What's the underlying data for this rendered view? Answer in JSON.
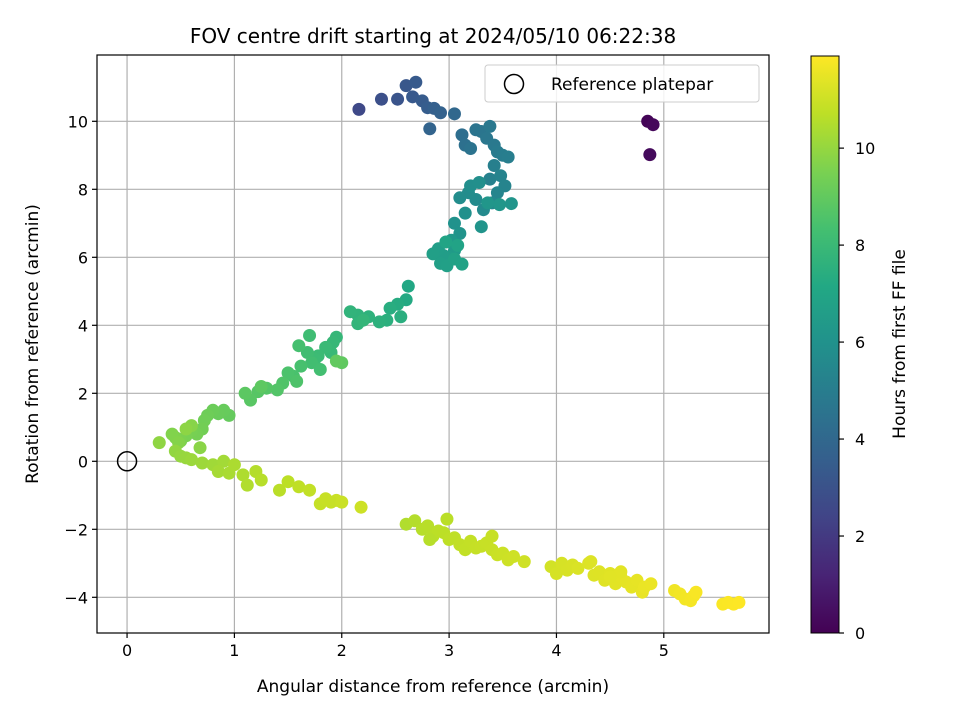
{
  "chart_data": {
    "type": "scatter",
    "title": "FOV centre drift starting at 2024/05/10 06:22:38",
    "xlabel": "Angular distance from reference (arcmin)",
    "ylabel": "Rotation from reference (arcmin)",
    "xlim": [
      -0.28,
      5.98
    ],
    "ylim": [
      -5.05,
      11.95
    ],
    "xticks": [
      "0",
      "1",
      "2",
      "3",
      "4",
      "5"
    ],
    "yticks": [
      "−4",
      "−2",
      "0",
      "2",
      "4",
      "6",
      "8",
      "10"
    ],
    "grid": true,
    "legend": {
      "position": "top-right",
      "entries": [
        "Reference platepar"
      ]
    },
    "reference_point": {
      "x": 0,
      "y": 0
    },
    "colorbar": {
      "label": "Hours from first FF file",
      "range": [
        0,
        11.9
      ],
      "ticks": [
        "0",
        "2",
        "4",
        "6",
        "8",
        "10"
      ],
      "colormap": "viridis"
    },
    "points": [
      [
        4.85,
        10.0,
        0.1
      ],
      [
        4.9,
        9.9,
        0.2
      ],
      [
        4.87,
        9.02,
        0.3
      ],
      [
        2.16,
        10.35,
        2.6
      ],
      [
        2.37,
        10.65,
        2.9
      ],
      [
        2.52,
        10.65,
        3.1
      ],
      [
        2.6,
        11.05,
        3.2
      ],
      [
        2.66,
        10.72,
        3.3
      ],
      [
        2.69,
        11.15,
        3.35
      ],
      [
        2.75,
        10.6,
        3.4
      ],
      [
        2.8,
        10.4,
        3.5
      ],
      [
        2.86,
        10.38,
        3.6
      ],
      [
        2.92,
        10.25,
        3.7
      ],
      [
        2.82,
        9.78,
        3.8
      ],
      [
        3.05,
        10.22,
        4.0
      ],
      [
        3.12,
        9.6,
        4.3
      ],
      [
        3.15,
        9.3,
        4.4
      ],
      [
        3.2,
        9.2,
        4.5
      ],
      [
        3.25,
        9.75,
        4.55
      ],
      [
        3.3,
        9.7,
        4.6
      ],
      [
        3.35,
        9.5,
        4.7
      ],
      [
        3.38,
        9.85,
        4.75
      ],
      [
        3.42,
        9.3,
        4.8
      ],
      [
        3.45,
        9.1,
        4.9
      ],
      [
        3.5,
        9.0,
        5.0
      ],
      [
        3.55,
        8.95,
        5.05
      ],
      [
        3.42,
        8.7,
        5.1
      ],
      [
        3.38,
        8.3,
        5.2
      ],
      [
        3.48,
        8.4,
        5.3
      ],
      [
        3.52,
        8.1,
        5.35
      ],
      [
        3.45,
        7.9,
        5.4
      ],
      [
        3.4,
        7.6,
        5.5
      ],
      [
        3.32,
        7.4,
        5.6
      ],
      [
        3.25,
        7.7,
        5.65
      ],
      [
        3.18,
        7.9,
        5.7
      ],
      [
        3.1,
        7.75,
        5.75
      ],
      [
        3.2,
        8.1,
        5.8
      ],
      [
        3.28,
        8.2,
        5.85
      ],
      [
        3.15,
        7.3,
        5.9
      ],
      [
        3.05,
        7.0,
        6.0
      ],
      [
        3.1,
        6.7,
        6.05
      ],
      [
        3.3,
        6.9,
        6.1
      ],
      [
        3.58,
        7.58,
        6.15
      ],
      [
        3.47,
        7.55,
        6.2
      ],
      [
        3.36,
        7.6,
        6.2
      ],
      [
        3.02,
        6.5,
        6.3
      ],
      [
        3.05,
        6.2,
        6.4
      ],
      [
        3.0,
        6.0,
        6.5
      ],
      [
        2.95,
        6.05,
        6.55
      ],
      [
        2.9,
        6.25,
        6.6
      ],
      [
        2.85,
        6.1,
        6.65
      ],
      [
        2.92,
        5.82,
        6.7
      ],
      [
        2.98,
        5.75,
        6.75
      ],
      [
        3.05,
        5.95,
        6.8
      ],
      [
        3.12,
        5.8,
        6.85
      ],
      [
        3.08,
        6.35,
        6.9
      ],
      [
        2.97,
        6.45,
        6.95
      ],
      [
        2.62,
        5.15,
        7.1
      ],
      [
        2.6,
        4.75,
        7.2
      ],
      [
        2.52,
        4.62,
        7.3
      ],
      [
        2.45,
        4.5,
        7.4
      ],
      [
        2.55,
        4.25,
        7.45
      ],
      [
        2.42,
        4.15,
        7.5
      ],
      [
        2.35,
        4.1,
        7.55
      ],
      [
        2.25,
        4.25,
        7.6
      ],
      [
        2.15,
        4.3,
        7.65
      ],
      [
        2.08,
        4.4,
        7.7
      ],
      [
        2.15,
        4.05,
        7.75
      ],
      [
        2.2,
        4.15,
        7.8
      ],
      [
        1.95,
        3.65,
        7.85
      ],
      [
        1.92,
        3.5,
        7.9
      ],
      [
        1.9,
        3.2,
        7.95
      ],
      [
        1.85,
        3.35,
        8.0
      ],
      [
        1.78,
        3.1,
        8.05
      ],
      [
        1.75,
        3.0,
        8.1
      ],
      [
        1.7,
        3.7,
        8.15
      ],
      [
        1.68,
        3.2,
        8.2
      ],
      [
        1.72,
        2.9,
        8.25
      ],
      [
        1.8,
        2.7,
        8.3
      ],
      [
        1.6,
        3.4,
        8.35
      ],
      [
        1.62,
        2.8,
        8.4
      ],
      [
        1.55,
        2.5,
        8.45
      ],
      [
        1.5,
        2.6,
        8.5
      ],
      [
        1.58,
        2.35,
        8.55
      ],
      [
        1.45,
        2.3,
        8.6
      ],
      [
        1.4,
        2.1,
        8.65
      ],
      [
        1.3,
        2.15,
        8.7
      ],
      [
        1.22,
        2.05,
        8.75
      ],
      [
        1.15,
        1.8,
        8.8
      ],
      [
        1.1,
        2.0,
        8.85
      ],
      [
        1.25,
        2.2,
        8.9
      ],
      [
        2.0,
        2.9,
        8.95
      ],
      [
        1.95,
        2.95,
        9.0
      ],
      [
        0.95,
        1.35,
        9.05
      ],
      [
        0.9,
        1.5,
        9.1
      ],
      [
        0.85,
        1.4,
        9.15
      ],
      [
        0.8,
        1.5,
        9.2
      ],
      [
        0.75,
        1.35,
        9.25
      ],
      [
        0.72,
        1.2,
        9.3
      ],
      [
        0.7,
        0.95,
        9.35
      ],
      [
        0.65,
        0.8,
        9.4
      ],
      [
        0.6,
        0.9,
        9.45
      ],
      [
        0.55,
        0.75,
        9.5
      ],
      [
        0.5,
        0.6,
        9.55
      ],
      [
        0.45,
        0.7,
        9.6
      ],
      [
        0.42,
        0.8,
        9.65
      ],
      [
        0.48,
        0.55,
        9.7
      ],
      [
        0.6,
        1.05,
        9.75
      ],
      [
        0.68,
        0.4,
        9.8
      ],
      [
        0.55,
        0.95,
        9.85
      ],
      [
        0.3,
        0.55,
        9.9
      ],
      [
        0.45,
        0.3,
        9.95
      ],
      [
        0.5,
        0.15,
        10.0
      ],
      [
        0.55,
        0.1,
        10.05
      ],
      [
        0.6,
        0.05,
        10.1
      ],
      [
        0.7,
        -0.05,
        10.15
      ],
      [
        0.8,
        -0.1,
        10.2
      ],
      [
        0.9,
        0.0,
        10.25
      ],
      [
        0.85,
        -0.3,
        10.3
      ],
      [
        0.95,
        -0.35,
        10.35
      ],
      [
        1.0,
        -0.1,
        10.4
      ],
      [
        1.08,
        -0.4,
        10.45
      ],
      [
        1.12,
        -0.7,
        10.5
      ],
      [
        1.2,
        -0.3,
        10.55
      ],
      [
        1.25,
        -0.55,
        10.6
      ],
      [
        1.42,
        -0.85,
        10.65
      ],
      [
        1.5,
        -0.6,
        10.7
      ],
      [
        1.6,
        -0.75,
        10.75
      ],
      [
        1.7,
        -0.85,
        10.8
      ],
      [
        1.8,
        -1.25,
        10.85
      ],
      [
        1.85,
        -1.1,
        10.9
      ],
      [
        1.95,
        -1.15,
        10.95
      ],
      [
        2.18,
        -1.35,
        11.0
      ],
      [
        1.9,
        -1.2,
        10.9
      ],
      [
        2.0,
        -1.2,
        10.95
      ],
      [
        2.6,
        -1.85,
        10.5
      ],
      [
        2.68,
        -1.75,
        10.55
      ],
      [
        2.75,
        -2.0,
        10.6
      ],
      [
        2.8,
        -1.9,
        10.62
      ],
      [
        2.85,
        -2.2,
        10.65
      ],
      [
        2.9,
        -2.05,
        10.68
      ],
      [
        2.95,
        -2.1,
        10.7
      ],
      [
        3.0,
        -2.3,
        10.72
      ],
      [
        3.05,
        -2.25,
        10.75
      ],
      [
        3.1,
        -2.45,
        10.78
      ],
      [
        3.15,
        -2.6,
        10.8
      ],
      [
        3.2,
        -2.35,
        10.82
      ],
      [
        3.25,
        -2.55,
        10.85
      ],
      [
        3.3,
        -2.5,
        10.87
      ],
      [
        3.35,
        -2.4,
        10.9
      ],
      [
        3.4,
        -2.6,
        10.92
      ],
      [
        3.45,
        -2.75,
        10.95
      ],
      [
        3.5,
        -2.7,
        10.97
      ],
      [
        3.55,
        -2.9,
        11.0
      ],
      [
        3.6,
        -2.8,
        11.02
      ],
      [
        3.7,
        -2.95,
        11.05
      ],
      [
        2.82,
        -2.3,
        10.6
      ],
      [
        2.98,
        -1.7,
        10.65
      ],
      [
        3.4,
        -2.2,
        10.9
      ],
      [
        3.95,
        -3.1,
        11.1
      ],
      [
        4.0,
        -3.3,
        11.15
      ],
      [
        4.05,
        -3.0,
        11.18
      ],
      [
        4.1,
        -3.2,
        11.2
      ],
      [
        4.15,
        -3.05,
        11.22
      ],
      [
        4.2,
        -3.15,
        11.25
      ],
      [
        4.3,
        -3.0,
        11.28
      ],
      [
        4.35,
        -3.35,
        11.3
      ],
      [
        4.4,
        -3.25,
        11.32
      ],
      [
        4.45,
        -3.5,
        11.35
      ],
      [
        4.5,
        -3.3,
        11.37
      ],
      [
        4.55,
        -3.6,
        11.4
      ],
      [
        4.6,
        -3.4,
        11.42
      ],
      [
        4.65,
        -3.55,
        11.45
      ],
      [
        4.7,
        -3.7,
        11.47
      ],
      [
        4.75,
        -3.5,
        11.5
      ],
      [
        4.8,
        -3.85,
        11.52
      ],
      [
        4.82,
        -3.7,
        11.55
      ],
      [
        4.88,
        -3.6,
        11.57
      ],
      [
        4.6,
        -3.25,
        11.4
      ],
      [
        4.5,
        -3.4,
        11.38
      ],
      [
        4.32,
        -2.95,
        11.3
      ],
      [
        5.1,
        -3.8,
        11.65
      ],
      [
        5.15,
        -3.9,
        11.7
      ],
      [
        5.2,
        -4.05,
        11.72
      ],
      [
        5.25,
        -4.1,
        11.75
      ],
      [
        5.28,
        -3.95,
        11.77
      ],
      [
        5.3,
        -3.85,
        11.8
      ],
      [
        5.55,
        -4.2,
        11.85
      ],
      [
        5.6,
        -4.15,
        11.87
      ],
      [
        5.65,
        -4.2,
        11.89
      ],
      [
        5.7,
        -4.15,
        11.9
      ]
    ]
  }
}
